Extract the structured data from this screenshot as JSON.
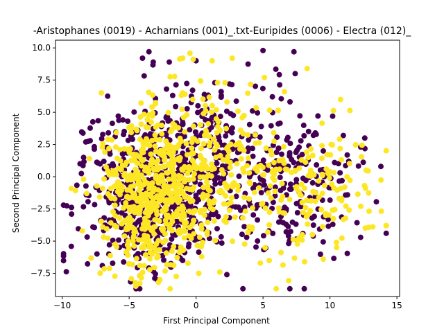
{
  "chart_data": {
    "type": "scatter",
    "title": "-Aristophanes (0019) - Acharnians (001)_.txt-Euripides (0006) - Electra (012)_",
    "xlabel": "First Principal Component",
    "ylabel": "Second Principal Component",
    "xlim": [
      -10.5,
      15.2
    ],
    "ylim": [
      -9.3,
      10.6
    ],
    "xticks": [
      -10,
      -5,
      0,
      5,
      10,
      15
    ],
    "yticks": [
      -7.5,
      -5.0,
      -2.5,
      0.0,
      2.5,
      5.0,
      7.5,
      10.0
    ],
    "grid": false,
    "legend": "none",
    "series": [
      {
        "color": "#440154",
        "point_count": 900,
        "seed": 11,
        "clusters": [
          {
            "cx": -3.5,
            "cy": -1.0,
            "sx": 2.4,
            "sy": 3.2,
            "weight": 0.55
          },
          {
            "cx": 1.5,
            "cy": 1.5,
            "sx": 2.8,
            "sy": 3.0,
            "weight": 0.25
          },
          {
            "cx": 7.0,
            "cy": -0.5,
            "sx": 2.6,
            "sy": 2.8,
            "weight": 0.2
          }
        ],
        "points": [
          [
            -9.3,
            -2.9
          ],
          [
            -8.4,
            1.5
          ],
          [
            -7.0,
            -6.9
          ],
          [
            -4.0,
            9.2
          ],
          [
            -3.2,
            8.9
          ],
          [
            -2.0,
            8.9
          ],
          [
            0.0,
            9.0
          ],
          [
            1.4,
            7.3
          ],
          [
            2.5,
            7.2
          ],
          [
            3.5,
            -8.7
          ],
          [
            5.0,
            9.8
          ],
          [
            7.4,
            8.0
          ],
          [
            9.5,
            2.0
          ],
          [
            11.0,
            3.2
          ],
          [
            12.3,
            2.3
          ],
          [
            12.6,
            3.0
          ],
          [
            13.8,
            0.8
          ],
          [
            11.4,
            1.2
          ],
          [
            10.2,
            4.7
          ],
          [
            6.9,
            -4.6
          ],
          [
            -7.4,
            -6.0
          ],
          [
            -1.0,
            -6.5
          ],
          [
            2.3,
            -7.6
          ]
        ]
      },
      {
        "color": "#fde725",
        "point_count": 900,
        "seed": 29,
        "clusters": [
          {
            "cx": -3.2,
            "cy": -1.2,
            "sx": 2.0,
            "sy": 3.0,
            "weight": 0.55
          },
          {
            "cx": 0.5,
            "cy": 1.0,
            "sx": 2.6,
            "sy": 3.2,
            "weight": 0.25
          },
          {
            "cx": 7.5,
            "cy": -0.8,
            "sx": 2.8,
            "sy": 2.6,
            "weight": 0.2
          }
        ],
        "points": [
          [
            -4.5,
            -8.5
          ],
          [
            -4.2,
            -8.3
          ],
          [
            -2.7,
            -8.0
          ],
          [
            -1.0,
            9.2
          ],
          [
            1.2,
            9.0
          ],
          [
            2.7,
            9.2
          ],
          [
            8.3,
            8.4
          ],
          [
            8.1,
            -6.6
          ],
          [
            9.5,
            -6.4
          ],
          [
            10.5,
            -5.5
          ],
          [
            12.3,
            -2.3
          ],
          [
            13.2,
            -3.9
          ],
          [
            12.7,
            0.5
          ],
          [
            -8.5,
            -4.2
          ],
          [
            -8.4,
            -0.2
          ],
          [
            -7.0,
            2.3
          ],
          [
            0.2,
            -7.5
          ],
          [
            4.8,
            -6.7
          ],
          [
            5.1,
            7.7
          ],
          [
            6.6,
            6.6
          ]
        ]
      }
    ]
  }
}
